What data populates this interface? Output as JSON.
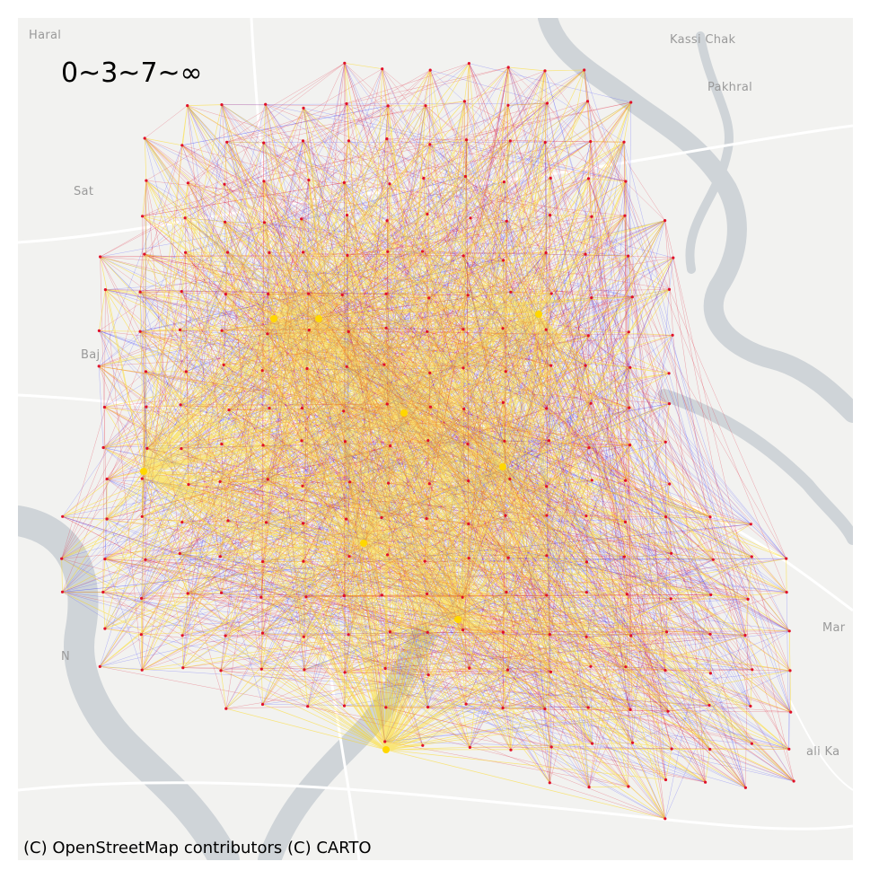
{
  "map": {
    "legend_title": "0~3~7~∞",
    "attribution": "(C) OpenStreetMap contributors (C) CARTO",
    "basemap": "CARTO light (Positron)",
    "place_labels": {
      "haral": "Haral",
      "kassi_chak": "Kassi Chak",
      "pakhral": "Pakhral",
      "sat": "Sat",
      "mar": "Mar",
      "n": "N",
      "ali_ka": "ali Ka",
      "baj": "Baj"
    },
    "edge_classes": [
      {
        "label": "0~3",
        "color": "#3b3bff"
      },
      {
        "label": "3~7",
        "color": "#e0102a"
      },
      {
        "label": "7~∞",
        "color": "#ffd700"
      }
    ],
    "colors": {
      "land": "#f2f2f0",
      "water": "#cfd4d8",
      "road": "#ffffff",
      "node": "#e0102a"
    }
  }
}
